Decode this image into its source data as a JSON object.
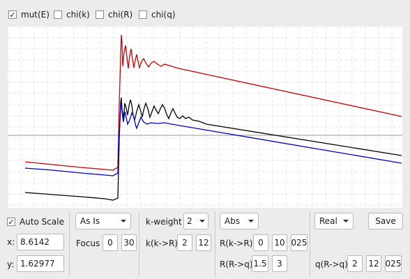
{
  "checkboxes": [
    {
      "label": "mut(E)",
      "checked": true
    },
    {
      "label": "chi(k)",
      "checked": false
    },
    {
      "label": "chi(R)",
      "checked": false
    },
    {
      "label": "chi(q)",
      "checked": false
    }
  ],
  "chart_data": {
    "type": "line",
    "title": "",
    "xlabel": "",
    "ylabel": "",
    "grid": true,
    "series": [
      {
        "color": "#cc0000",
        "points": [
          [
            0,
            232
          ],
          [
            40,
            236
          ],
          [
            80,
            240
          ],
          [
            115,
            243
          ],
          [
            126,
            244
          ],
          [
            133,
            240
          ],
          [
            135,
            150
          ],
          [
            137,
            80
          ],
          [
            138,
            50
          ],
          [
            139,
            62
          ],
          [
            140,
            95
          ],
          [
            142,
            75
          ],
          [
            144,
            65
          ],
          [
            146,
            82
          ],
          [
            148,
            98
          ],
          [
            150,
            80
          ],
          [
            152,
            70
          ],
          [
            154,
            85
          ],
          [
            156,
            97
          ],
          [
            158,
            86
          ],
          [
            160,
            78
          ],
          [
            162,
            88
          ],
          [
            164,
            97
          ],
          [
            167,
            88
          ],
          [
            170,
            84
          ],
          [
            173,
            90
          ],
          [
            177,
            96
          ],
          [
            181,
            90
          ],
          [
            185,
            88
          ],
          [
            190,
            92
          ],
          [
            195,
            95
          ],
          [
            200,
            92
          ],
          [
            210,
            95
          ],
          [
            220,
            98
          ],
          [
            540,
            167
          ]
        ]
      },
      {
        "color": "#000000",
        "points": [
          [
            0,
            276
          ],
          [
            40,
            279
          ],
          [
            80,
            282
          ],
          [
            115,
            285
          ],
          [
            126,
            287
          ],
          [
            133,
            284
          ],
          [
            135,
            200
          ],
          [
            137,
            148
          ],
          [
            138,
            140
          ],
          [
            139,
            157
          ],
          [
            141,
            170
          ],
          [
            143,
            148
          ],
          [
            145,
            155
          ],
          [
            147,
            165
          ],
          [
            149,
            152
          ],
          [
            151,
            143
          ],
          [
            153,
            150
          ],
          [
            155,
            166
          ],
          [
            157,
            172
          ],
          [
            160,
            160
          ],
          [
            163,
            150
          ],
          [
            166,
            160
          ],
          [
            168,
            168
          ],
          [
            170,
            158
          ],
          [
            173,
            148
          ],
          [
            176,
            156
          ],
          [
            179,
            168
          ],
          [
            182,
            160
          ],
          [
            185,
            152
          ],
          [
            188,
            158
          ],
          [
            191,
            163
          ],
          [
            194,
            156
          ],
          [
            197,
            150
          ],
          [
            200,
            155
          ],
          [
            203,
            164
          ],
          [
            206,
            170
          ],
          [
            209,
            162
          ],
          [
            212,
            156
          ],
          [
            215,
            162
          ],
          [
            218,
            168
          ],
          [
            222,
            170
          ],
          [
            226,
            166
          ],
          [
            230,
            170
          ],
          [
            235,
            168
          ],
          [
            240,
            172
          ],
          [
            250,
            174
          ],
          [
            260,
            178
          ],
          [
            540,
            223
          ]
        ]
      },
      {
        "color": "#0000cc",
        "points": [
          [
            0,
            241
          ],
          [
            40,
            244
          ],
          [
            80,
            248
          ],
          [
            115,
            251
          ],
          [
            126,
            252
          ],
          [
            133,
            248
          ],
          [
            135,
            190
          ],
          [
            137,
            155
          ],
          [
            138,
            145
          ],
          [
            139,
            160
          ],
          [
            141,
            175
          ],
          [
            143,
            160
          ],
          [
            145,
            168
          ],
          [
            147,
            178
          ],
          [
            150,
            172
          ],
          [
            153,
            162
          ],
          [
            156,
            168
          ],
          [
            158,
            178
          ],
          [
            160,
            184
          ],
          [
            163,
            176
          ],
          [
            166,
            168
          ],
          [
            170,
            175
          ],
          [
            175,
            178
          ],
          [
            180,
            176
          ],
          [
            190,
            177
          ],
          [
            200,
            176
          ],
          [
            210,
            178
          ],
          [
            540,
            234
          ]
        ]
      }
    ]
  },
  "controls": {
    "auto_scale": {
      "label": "Auto Scale",
      "checked": true
    },
    "x_label": "x:",
    "x_value": "8.6142",
    "y_label": "y:",
    "y_value": "1.62977",
    "as_is": "As Is",
    "focus_label": "Focus",
    "focus_min": "0",
    "focus_max": "30",
    "kweight_label": "k-weight",
    "kweight_value": "2",
    "k2r_label": "k(k->R)",
    "k2r_min": "2",
    "k2r_max": "12",
    "abs": "Abs",
    "r2r_label": "R(k->R)",
    "r2r_min": "0",
    "r2r_max": "10",
    "r2r_third": "025",
    "rq_label": "R(R->q)",
    "rq_min": "1.5",
    "rq_max": "3",
    "real": "Real",
    "save": "Save",
    "q_label": "q(R->q)",
    "q_min": "2",
    "q_max": "12",
    "q_third": "025"
  }
}
